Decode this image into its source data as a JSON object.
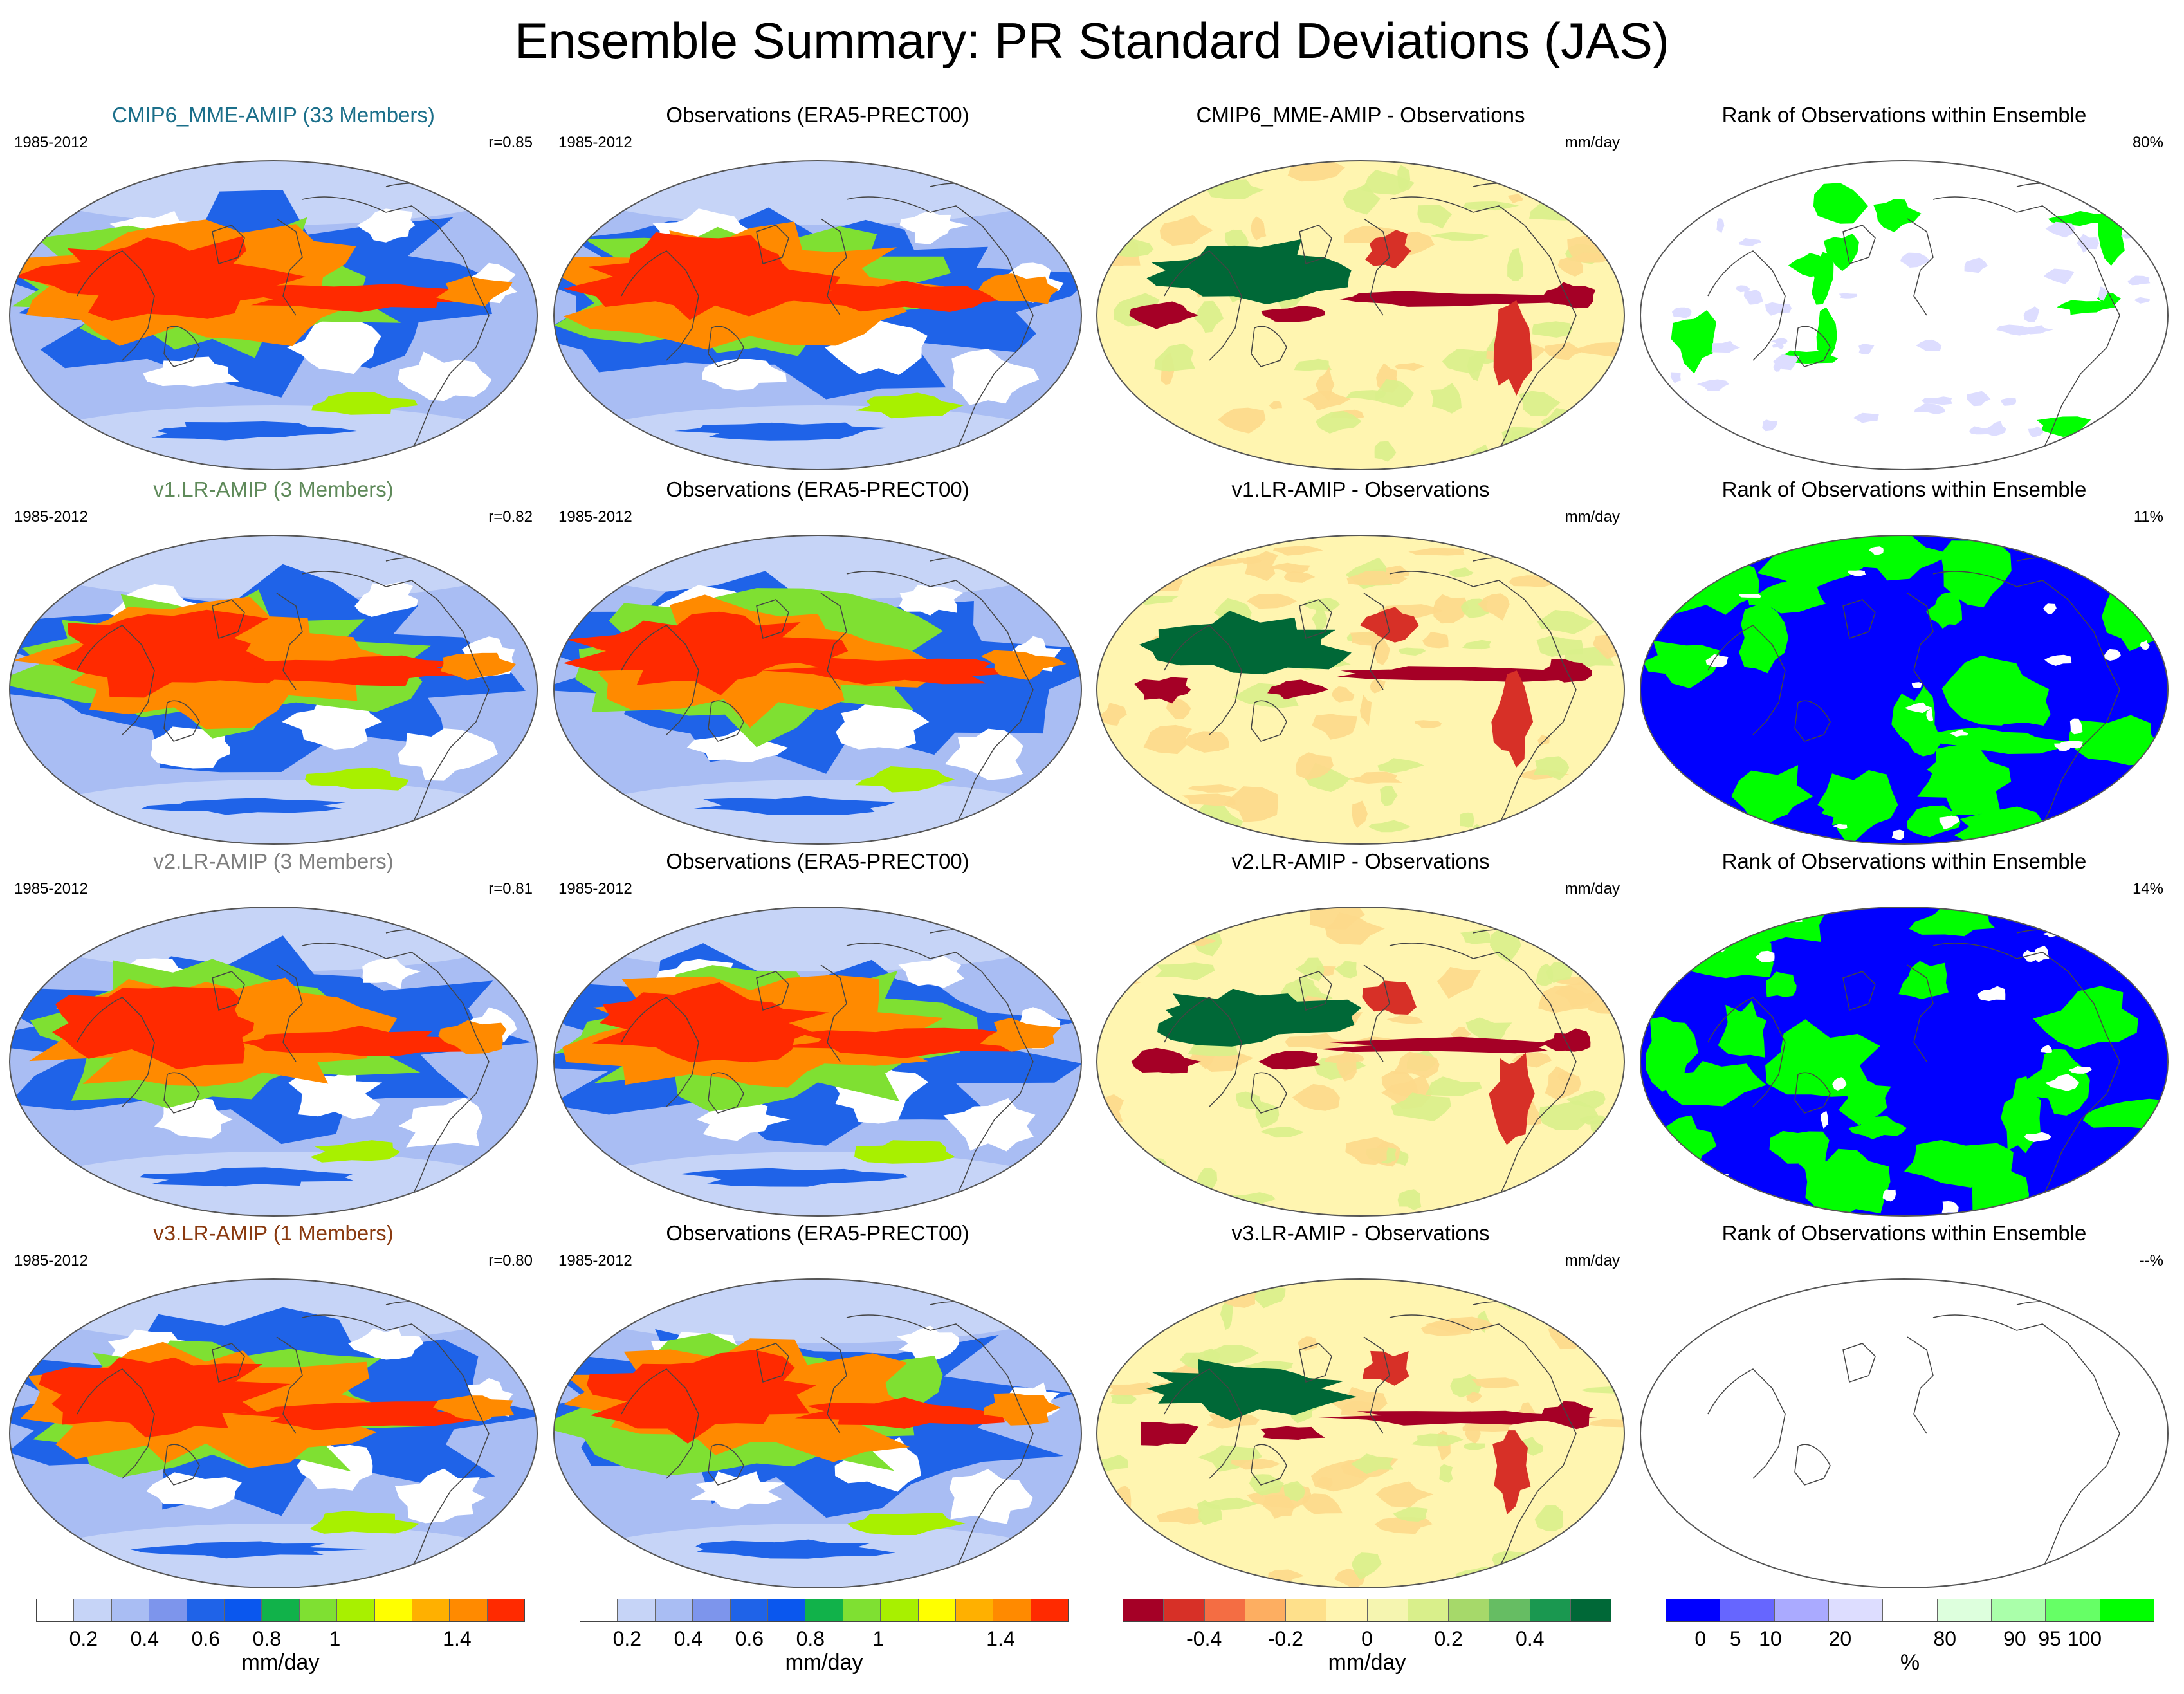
{
  "title": "Ensemble Summary: PR Standard Deviations (JAS)",
  "rows": [
    {
      "model": {
        "title": "CMIP6_MME-AMIP (33 Members)",
        "title_color": "#1b6f8a",
        "period": "1985-2012",
        "corr": "r=0.85"
      },
      "obs": {
        "title": "Observations (ERA5-PRECT00)",
        "period": "1985-2012"
      },
      "diff": {
        "title": "CMIP6_MME-AMIP - Observations",
        "unit": "mm/day"
      },
      "rank": {
        "title": "Rank of Observations within Ensemble",
        "pct": "80%"
      }
    },
    {
      "model": {
        "title": "v1.LR-AMIP (3 Members)",
        "title_color": "#5f8a5a",
        "period": "1985-2012",
        "corr": "r=0.82"
      },
      "obs": {
        "title": "Observations (ERA5-PRECT00)",
        "period": "1985-2012"
      },
      "diff": {
        "title": "v1.LR-AMIP - Observations",
        "unit": "mm/day"
      },
      "rank": {
        "title": "Rank of Observations within Ensemble",
        "pct": "11%"
      }
    },
    {
      "model": {
        "title": "v2.LR-AMIP (3 Members)",
        "title_color": "#7f7f7f",
        "period": "1985-2012",
        "corr": "r=0.81"
      },
      "obs": {
        "title": "Observations (ERA5-PRECT00)",
        "period": "1985-2012"
      },
      "diff": {
        "title": "v2.LR-AMIP - Observations",
        "unit": "mm/day"
      },
      "rank": {
        "title": "Rank of Observations within Ensemble",
        "pct": "14%"
      }
    },
    {
      "model": {
        "title": "v3.LR-AMIP (1 Members)",
        "title_color": "#8a3a10",
        "period": "1985-2012",
        "corr": "r=0.80"
      },
      "obs": {
        "title": "Observations (ERA5-PRECT00)",
        "period": "1985-2012"
      },
      "diff": {
        "title": "v3.LR-AMIP - Observations",
        "unit": "mm/day"
      },
      "rank": {
        "title": "Rank of Observations within Ensemble",
        "pct": "--%"
      }
    }
  ],
  "colorbars": {
    "sd": {
      "colors": [
        "#ffffff",
        "#c6d4f7",
        "#a9bdf3",
        "#7d95ec",
        "#1f63e8",
        "#0a57ee",
        "#11b24a",
        "#7fe032",
        "#a8f000",
        "#ffff00",
        "#ffb000",
        "#ff8a00",
        "#ff2a00"
      ],
      "ticks": [
        "0.2",
        "0.4",
        "0.6",
        "0.8",
        "1",
        "1.4"
      ],
      "unit": "mm/day"
    },
    "diff": {
      "colors": [
        "#a50026",
        "#d73027",
        "#f46d43",
        "#fdae61",
        "#fee08b",
        "#fff5b0",
        "#f5f5b0",
        "#d9ef8b",
        "#a6d96a",
        "#66bd63",
        "#1a9850",
        "#006837"
      ],
      "ticks": [
        "-0.4",
        "-0.2",
        "0",
        "0.2",
        "0.4"
      ],
      "unit": "mm/day"
    },
    "rank": {
      "colors": [
        "#0000ff",
        "#6666ff",
        "#aaaaff",
        "#ddddff",
        "#ffffff",
        "#ddffdd",
        "#aaffaa",
        "#66ff66",
        "#00ff00"
      ],
      "ticks": [
        "0",
        "5",
        "10",
        "20",
        "80",
        "90",
        "95",
        "100"
      ],
      "unit": "%"
    }
  }
}
